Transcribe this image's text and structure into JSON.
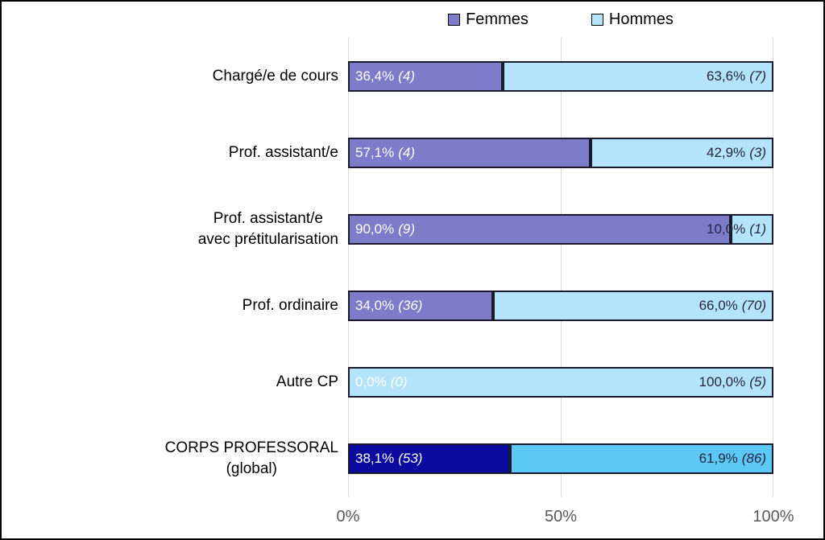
{
  "palette": {
    "femmes": "#7c7cc9",
    "hommes": "#b4e4fb",
    "femmes_global": "#0a0a9e",
    "hommes_global": "#5bc8f5",
    "bar_border": "#1a1a2e",
    "gridline": "#d9d9d9",
    "axis_text": "#595959",
    "value_text_dark": "#26263e",
    "value_text_light": "#ffffff"
  },
  "legend": {
    "items": [
      {
        "label": "Femmes",
        "color": "#7c7cc9"
      },
      {
        "label": "Hommes",
        "color": "#b4e4fb"
      }
    ]
  },
  "x_axis": {
    "ticks": [
      "0%",
      "50%",
      "100%"
    ]
  },
  "chart_data": {
    "type": "bar",
    "orientation": "horizontal",
    "stacked": true,
    "grid": true,
    "legend_position": "top",
    "xlim": [
      0,
      100
    ],
    "x_tick_labels": [
      "0%",
      "50%",
      "100%"
    ],
    "categories": [
      "Chargé/e de cours",
      "Prof. assistant/e",
      "Prof. assistant/e avec prétitularisation",
      "Prof. ordinaire",
      "Autre CP",
      "CORPS PROFESSORAL (global)"
    ],
    "series": [
      {
        "name": "Femmes",
        "values": [
          36.4,
          57.1,
          90.0,
          34.0,
          0.0,
          38.1
        ],
        "counts": [
          4,
          4,
          9,
          36,
          0,
          53
        ]
      },
      {
        "name": "Hommes",
        "values": [
          63.6,
          42.9,
          10.0,
          66.0,
          100.0,
          61.9
        ],
        "counts": [
          7,
          3,
          1,
          70,
          5,
          86
        ]
      }
    ]
  },
  "rows": [
    {
      "label": "Chargé/e de cours",
      "f_pct": "36,4%",
      "f_cnt": "(4)",
      "f_w": "36.4%",
      "f_color": "#7c7cc9",
      "h_pct": "63,6%",
      "h_cnt": "(7)",
      "h_w": "63.6%",
      "h_color": "#b4e4fb"
    },
    {
      "label": "Prof. assistant/e",
      "f_pct": "57,1%",
      "f_cnt": "(4)",
      "f_w": "57.1%",
      "f_color": "#7c7cc9",
      "h_pct": "42,9%",
      "h_cnt": "(3)",
      "h_w": "42.9%",
      "h_color": "#b4e4fb"
    },
    {
      "label": "Prof. assistant/e\navec prétitularisation",
      "f_pct": "90,0%",
      "f_cnt": "(9)",
      "f_w": "90%",
      "f_color": "#7c7cc9",
      "h_pct": "10,0%",
      "h_cnt": "(1)",
      "h_w": "10%",
      "h_color": "#b4e4fb"
    },
    {
      "label": "Prof. ordinaire",
      "f_pct": "34,0%",
      "f_cnt": "(36)",
      "f_w": "34%",
      "f_color": "#7c7cc9",
      "h_pct": "66,0%",
      "h_cnt": "(70)",
      "h_w": "66%",
      "h_color": "#b4e4fb"
    },
    {
      "label": "Autre CP",
      "f_pct": "0,0%",
      "f_cnt": "(0)",
      "f_w": "0%",
      "f_display": "none",
      "f_color": "#7c7cc9",
      "h_pct": "100,0%",
      "h_cnt": "(5)",
      "h_w": "100%",
      "h_color": "#b4e4fb"
    },
    {
      "label": "CORPS PROFESSORAL\n(global)",
      "f_pct": "38,1%",
      "f_cnt": "(53)",
      "f_w": "38.1%",
      "f_color": "#0a0a9e",
      "h_pct": "61,9%",
      "h_cnt": "(86)",
      "h_w": "61.9%",
      "h_color": "#5bc8f5"
    }
  ]
}
